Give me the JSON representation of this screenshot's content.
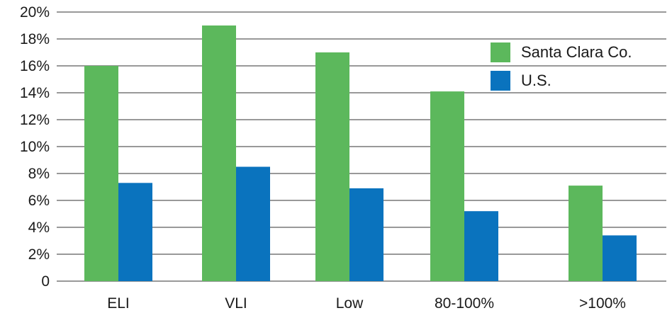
{
  "chart_data": {
    "type": "bar",
    "title": "",
    "xlabel": "",
    "ylabel": "",
    "categories": [
      "ELI",
      "VLI",
      "Low",
      "80-100%",
      ">100%"
    ],
    "series": [
      {
        "name": "Santa Clara Co.",
        "color": "#5cb85c",
        "values": [
          16,
          19,
          17,
          14.1,
          7.1
        ]
      },
      {
        "name": "U.S.",
        "color": "#0a73be",
        "values": [
          7.3,
          8.5,
          6.9,
          5.2,
          3.4
        ]
      }
    ],
    "ylim": [
      0,
      20
    ],
    "yticks": [
      {
        "value": 0,
        "label": "0"
      },
      {
        "value": 2,
        "label": "2%"
      },
      {
        "value": 4,
        "label": "4%"
      },
      {
        "value": 6,
        "label": "6%"
      },
      {
        "value": 8,
        "label": "8%"
      },
      {
        "value": 10,
        "label": "10%"
      },
      {
        "value": 12,
        "label": "12%"
      },
      {
        "value": 14,
        "label": "14%"
      },
      {
        "value": 16,
        "label": "16%"
      },
      {
        "value": 18,
        "label": "18%"
      },
      {
        "value": 20,
        "label": "20%"
      }
    ],
    "grid": true,
    "legend": {
      "position": "top-right",
      "items": [
        {
          "label": "Santa Clara Co.",
          "color": "#5cb85c"
        },
        {
          "label": "U.S.",
          "color": "#0a73be"
        }
      ]
    }
  }
}
